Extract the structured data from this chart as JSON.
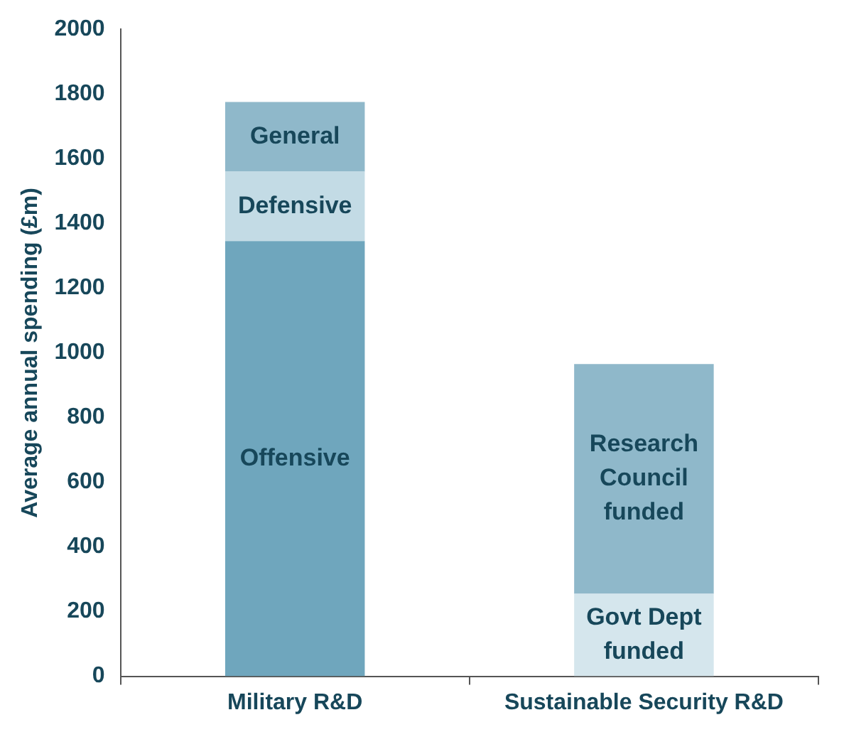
{
  "chart_data": {
    "type": "bar",
    "ylabel": "Average annual spending (£m)",
    "categories": [
      "Military R&D",
      "Sustainable Security R&D"
    ],
    "stacked": true,
    "ylim": [
      0,
      2000
    ],
    "yticks": [
      0,
      200,
      400,
      600,
      800,
      1000,
      1200,
      1400,
      1600,
      1800,
      2000
    ],
    "grid": false,
    "legend": false,
    "series": [
      {
        "name": "Offensive",
        "color": "#6fa6bd",
        "values": [
          1345,
          null
        ]
      },
      {
        "name": "Defensive",
        "color": "#c3dbe5",
        "values": [
          215,
          null
        ]
      },
      {
        "name": "General",
        "color": "#8fb8ca",
        "values": [
          215,
          null
        ]
      },
      {
        "name": "Govt Dept funded",
        "color": "#d5e6ed",
        "values": [
          null,
          255
        ]
      },
      {
        "name": "Research Council funded",
        "color": "#8fb8ca",
        "values": [
          null,
          710
        ]
      }
    ]
  }
}
